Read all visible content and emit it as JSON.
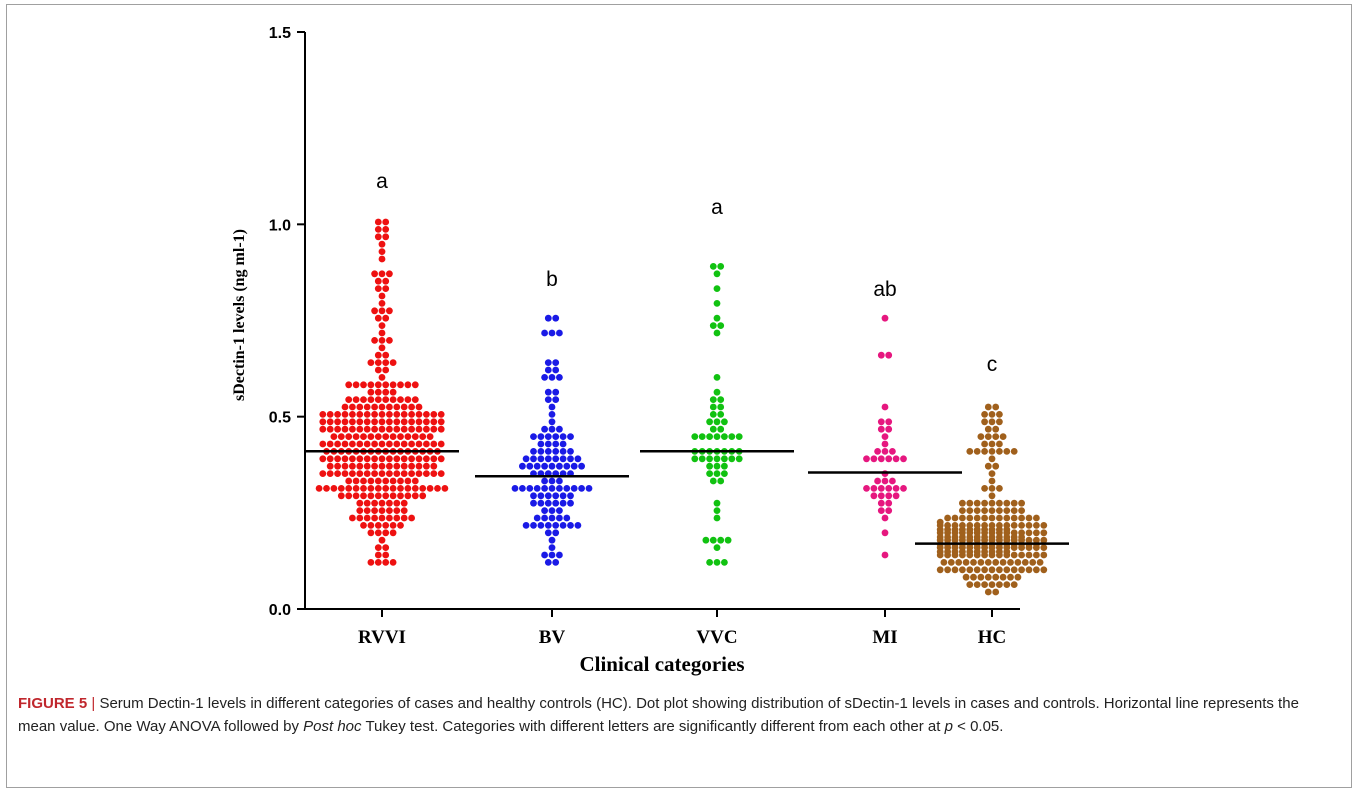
{
  "chart_data": {
    "type": "scatter",
    "subtype": "dot-plot",
    "xlabel": "Clinical categories",
    "ylabel": "sDectin-1 levels (ng ml-1)",
    "ylim": [
      0,
      1.5
    ],
    "yticks": [
      "0.0",
      "0.5",
      "1.0",
      "1.5"
    ],
    "categories": [
      "RVVI",
      "BV",
      "VVC",
      "MI",
      "HC"
    ],
    "series": [
      {
        "name": "RVVI",
        "color": "#ee1111",
        "mean": 0.41,
        "letter": "a",
        "n": 300,
        "min": 0.12,
        "max": 1.01
      },
      {
        "name": "BV",
        "color": "#1a1ae6",
        "mean": 0.345,
        "letter": "b",
        "n": 110,
        "min": 0.12,
        "max": 0.76
      },
      {
        "name": "VVC",
        "color": "#11c211",
        "mean": 0.41,
        "letter": "a",
        "n": 60,
        "min": 0.12,
        "max": 0.9
      },
      {
        "name": "MI",
        "color": "#e6177f",
        "mean": 0.355,
        "letter": "ab",
        "n": 38,
        "min": 0.14,
        "max": 0.76
      },
      {
        "name": "HC",
        "color": "#a0601c",
        "mean": 0.17,
        "letter": "c",
        "n": 230,
        "min": 0.04,
        "max": 0.52
      }
    ]
  },
  "caption": {
    "label": "FIGURE 5",
    "separator": "|",
    "text_1": "Serum Dectin-1 levels in different categories of cases and healthy controls (HC). Dot plot showing distribution of sDectin-1 levels in cases and controls. Horizontal line represents the mean value. One Way ANOVA followed by",
    "italic": "Post hoc",
    "text_2": "Tukey test. Categories with different letters are significantly different from each other at",
    "p_var": "p",
    "p_rest": "< 0.05."
  }
}
